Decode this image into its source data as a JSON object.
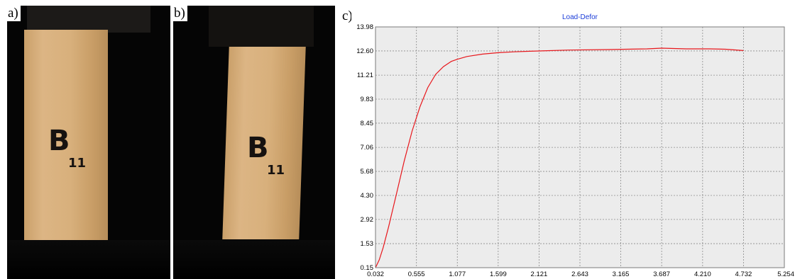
{
  "panels": {
    "a_label": "a)",
    "b_label": "b)",
    "c_label": "c)"
  },
  "specimen": {
    "mark_a": "B",
    "mark_a_sub": "11",
    "mark_b": "B",
    "mark_b_sub": "11"
  },
  "chart_data": {
    "type": "line",
    "title": "Load-Defor",
    "xlabel": "",
    "ylabel": "",
    "xlim": [
      0.032,
      5.254
    ],
    "ylim": [
      0.15,
      13.98
    ],
    "x_ticks": [
      "0.032",
      "0.555",
      "1.077",
      "1.599",
      "2.121",
      "2.643",
      "3.165",
      "3.687",
      "4.210",
      "4.732",
      "5.254"
    ],
    "y_ticks": [
      "0.15",
      "1.53",
      "2.92",
      "4.30",
      "5.68",
      "7.06",
      "8.45",
      "9.83",
      "11.21",
      "12.60",
      "13.98"
    ],
    "grid": true,
    "series": [
      {
        "color": "#e8171c",
        "x": [
          0.032,
          0.08,
          0.13,
          0.2,
          0.3,
          0.4,
          0.5,
          0.6,
          0.7,
          0.8,
          0.9,
          1.0,
          1.077,
          1.2,
          1.4,
          1.6,
          1.8,
          2.0,
          2.5,
          3.0,
          3.5,
          3.687,
          4.0,
          4.3,
          4.5,
          4.732
        ],
        "y": [
          0.15,
          0.6,
          1.3,
          2.5,
          4.4,
          6.3,
          8.0,
          9.4,
          10.5,
          11.25,
          11.7,
          12.0,
          12.12,
          12.28,
          12.42,
          12.5,
          12.55,
          12.58,
          12.65,
          12.68,
          12.72,
          12.76,
          12.72,
          12.72,
          12.7,
          12.62
        ]
      }
    ]
  }
}
